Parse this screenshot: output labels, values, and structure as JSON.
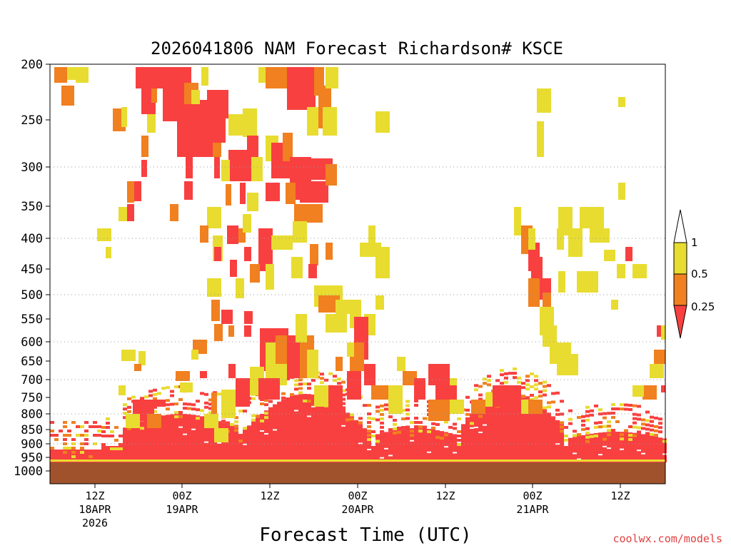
{
  "chart_data": {
    "type": "heatmap",
    "title": "2026041806 NAM Forecast Richardson# KSCE",
    "xlabel": "Forecast Time (UTC)",
    "credit": "coolwx.com/models",
    "y_axis": {
      "scale": "log-pressure (inverted)",
      "range": [
        1000,
        200
      ],
      "tick_labels": [
        "200",
        "250",
        "300",
        "350",
        "400",
        "450",
        "500",
        "550",
        "600",
        "650",
        "700",
        "750",
        "800",
        "850",
        "900",
        "950",
        "1000"
      ],
      "gridlines_at": [
        300,
        400,
        500,
        600,
        700,
        800,
        900
      ]
    },
    "x_axis": {
      "tick_labels": [
        {
          "line1": "12Z",
          "line2": "18APR",
          "line3": "2026"
        },
        {
          "line1": "00Z",
          "line2": "19APR",
          "line3": ""
        },
        {
          "line1": "12Z",
          "line2": "",
          "line3": ""
        },
        {
          "line1": "00Z",
          "line2": "20APR",
          "line3": ""
        },
        {
          "line1": "12Z",
          "line2": "",
          "line3": ""
        },
        {
          "line1": "00Z",
          "line2": "21APR",
          "line3": ""
        },
        {
          "line1": "12Z",
          "line2": "",
          "line3": ""
        }
      ]
    },
    "colorbar": {
      "labels": [
        "1",
        "0.5",
        "0.25"
      ],
      "bins": [
        {
          "range": "< 0.25",
          "color": "#f84040"
        },
        {
          "range": "0.25 - 0.5",
          "color": "#f08020"
        },
        {
          "range": "0.5 - 1",
          "color": "#e8dc30"
        },
        {
          "range": "> 1",
          "color": "#ffffff"
        }
      ]
    },
    "colors": {
      "red": "#f84040",
      "orange": "#f08020",
      "yellow": "#e8dc30",
      "ground": "#a0522d",
      "grid": "#999999"
    },
    "description": "Low Richardson number values concentrated in the boundary layer (800-1000 hPa) throughout the forecast, with elevated patches of low Ri aloft near 19APR 00Z-12Z, 20APR 00Z and 21APR 00Z."
  }
}
